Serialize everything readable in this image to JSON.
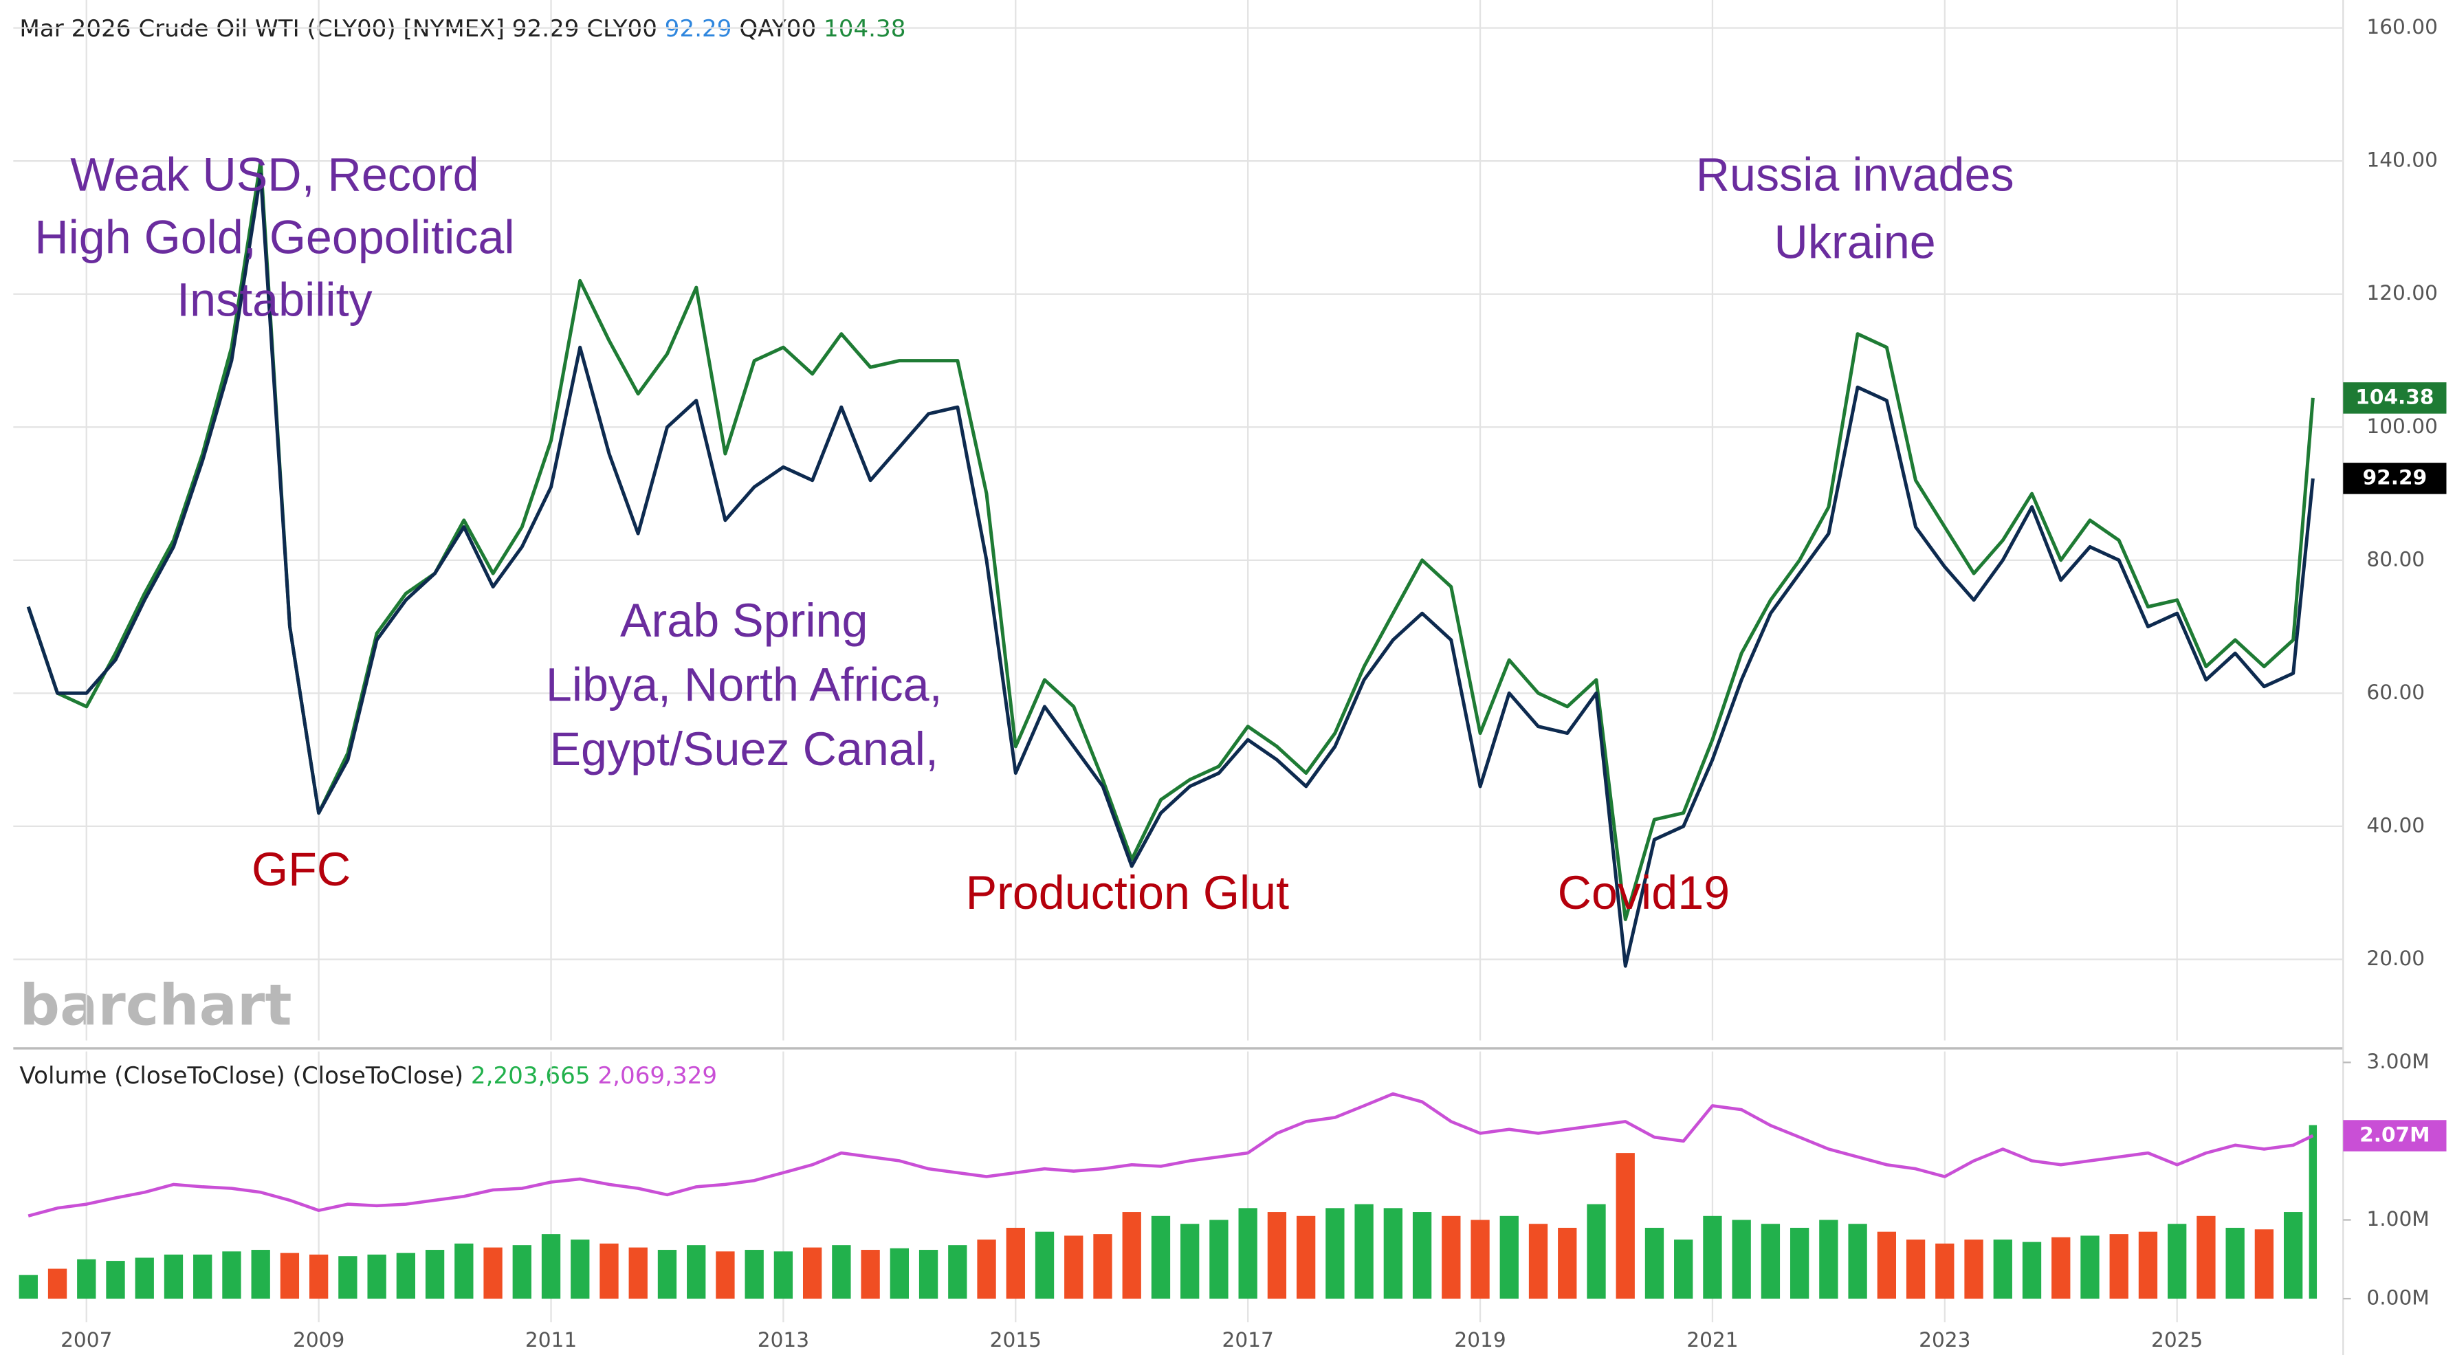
{
  "chart_data": [
    {
      "type": "line",
      "title": "Mar 2026 Crude Oil WTI (CLY00) [NYMEX] 92.29",
      "watermark": "barchart",
      "x": [
        2006.5,
        2006.75,
        2007,
        2007.25,
        2007.5,
        2007.75,
        2008,
        2008.25,
        2008.5,
        2008.75,
        2009,
        2009.25,
        2009.5,
        2009.75,
        2010,
        2010.25,
        2010.5,
        2010.75,
        2011,
        2011.25,
        2011.5,
        2011.75,
        2012,
        2012.25,
        2012.5,
        2012.75,
        2013,
        2013.25,
        2013.5,
        2013.75,
        2014,
        2014.25,
        2014.5,
        2014.75,
        2015,
        2015.25,
        2015.5,
        2015.75,
        2016,
        2016.25,
        2016.5,
        2016.75,
        2017,
        2017.25,
        2017.5,
        2017.75,
        2018,
        2018.25,
        2018.5,
        2018.75,
        2019,
        2019.25,
        2019.5,
        2019.75,
        2020,
        2020.25,
        2020.5,
        2020.75,
        2021,
        2021.25,
        2021.5,
        2021.75,
        2022,
        2022.25,
        2022.5,
        2022.75,
        2023,
        2023.25,
        2023.5,
        2023.75,
        2024,
        2024.25,
        2024.5,
        2024.75,
        2025,
        2025.25,
        2025.5,
        2025.75,
        2026,
        2026.17
      ],
      "series": [
        {
          "name": "CLY00",
          "color": "#0d2a4f",
          "legend_color": "#2e86de",
          "last_label": "92.29",
          "values": [
            73,
            60,
            60,
            65,
            74,
            82,
            95,
            110,
            138,
            70,
            42,
            50,
            68,
            74,
            78,
            85,
            76,
            82,
            91,
            112,
            96,
            84,
            100,
            104,
            86,
            91,
            94,
            92,
            103,
            92,
            97,
            102,
            103,
            80,
            48,
            58,
            52,
            46,
            34,
            42,
            46,
            48,
            53,
            50,
            46,
            52,
            62,
            68,
            72,
            68,
            46,
            60,
            55,
            54,
            60,
            19,
            38,
            40,
            50,
            62,
            72,
            78,
            84,
            106,
            104,
            85,
            79,
            74,
            80,
            88,
            77,
            82,
            80,
            70,
            72,
            62,
            66,
            61,
            63,
            92.29
          ]
        },
        {
          "name": "QAY00",
          "color": "#1e7b34",
          "legend_color": "#1e8a3c",
          "last_label": "104.38",
          "values": [
            73,
            60,
            58,
            66,
            75,
            83,
            96,
            112,
            140,
            70,
            42,
            51,
            69,
            75,
            78,
            86,
            78,
            85,
            98,
            122,
            113,
            105,
            111,
            121,
            96,
            110,
            112,
            108,
            114,
            109,
            110,
            110,
            110,
            90,
            52,
            62,
            58,
            47,
            35,
            44,
            47,
            49,
            55,
            52,
            48,
            54,
            64,
            72,
            80,
            76,
            54,
            65,
            60,
            58,
            62,
            26,
            41,
            42,
            53,
            66,
            74,
            80,
            88,
            114,
            112,
            92,
            85,
            78,
            83,
            90,
            80,
            86,
            83,
            73,
            74,
            64,
            68,
            64,
            68,
            104.38
          ]
        }
      ],
      "xlim": [
        2006.37,
        2026.43
      ],
      "xticks": [
        2007,
        2009,
        2011,
        2013,
        2015,
        2017,
        2019,
        2021,
        2023,
        2025
      ],
      "ylim": [
        7.8,
        164.2
      ],
      "yticks": [
        {
          "value": 20,
          "label": "20.00"
        },
        {
          "value": 40,
          "label": "40.00"
        },
        {
          "value": 60,
          "label": "60.00"
        },
        {
          "value": 80,
          "label": "80.00"
        },
        {
          "value": 100,
          "label": "100.00"
        },
        {
          "value": 120,
          "label": "120.00"
        },
        {
          "value": 140,
          "label": "140.00"
        },
        {
          "value": 160,
          "label": "160.00"
        }
      ],
      "grid": true,
      "annotations": [
        {
          "lines": [
            "Weak USD, Record",
            "High Gold, Geopolitical",
            "Instability"
          ],
          "color": "#6a2c9e"
        },
        {
          "lines": [
            "GFC"
          ],
          "color": "#b5000c"
        },
        {
          "lines": [
            "Arab Spring",
            "Libya, North Africa,",
            "Egypt/Suez Canal,"
          ],
          "color": "#6a2c9e"
        },
        {
          "lines": [
            "Production Glut"
          ],
          "color": "#b5000c"
        },
        {
          "lines": [
            "Covid19"
          ],
          "color": "#b5000c"
        },
        {
          "lines": [
            "Russia invades",
            "Ukraine"
          ],
          "color": "#6a2c9e"
        }
      ]
    },
    {
      "type": "bar",
      "x": [
        2006.5,
        2006.75,
        2007,
        2007.25,
        2007.5,
        2007.75,
        2008,
        2008.25,
        2008.5,
        2008.75,
        2009,
        2009.25,
        2009.5,
        2009.75,
        2010,
        2010.25,
        2010.5,
        2010.75,
        2011,
        2011.25,
        2011.5,
        2011.75,
        2012,
        2012.25,
        2012.5,
        2012.75,
        2013,
        2013.25,
        2013.5,
        2013.75,
        2014,
        2014.25,
        2014.5,
        2014.75,
        2015,
        2015.25,
        2015.5,
        2015.75,
        2016,
        2016.25,
        2016.5,
        2016.75,
        2017,
        2017.25,
        2017.5,
        2017.75,
        2018,
        2018.25,
        2018.5,
        2018.75,
        2019,
        2019.25,
        2019.5,
        2019.75,
        2020,
        2020.25,
        2020.5,
        2020.75,
        2021,
        2021.25,
        2021.5,
        2021.75,
        2022,
        2022.25,
        2022.5,
        2022.75,
        2023,
        2023.25,
        2023.5,
        2023.75,
        2024,
        2024.25,
        2024.5,
        2024.75,
        2025,
        2025.25,
        2025.5,
        2025.75,
        2026,
        2026.17
      ],
      "series": [
        {
          "name": "Volume (CloseToClose)",
          "up_color": "#22b14c",
          "down_color": "#f04e23",
          "legend_color": "#22b14c",
          "last_label": "2,203,665",
          "values": [
            300000,
            380000,
            500000,
            480000,
            520000,
            560000,
            560000,
            600000,
            620000,
            580000,
            560000,
            540000,
            560000,
            580000,
            620000,
            700000,
            650000,
            680000,
            820000,
            750000,
            700000,
            650000,
            620000,
            680000,
            600000,
            620000,
            600000,
            650000,
            680000,
            620000,
            640000,
            620000,
            680000,
            750000,
            900000,
            850000,
            800000,
            820000,
            1100000,
            1050000,
            950000,
            1000000,
            1150000,
            1100000,
            1050000,
            1150000,
            1200000,
            1150000,
            1100000,
            1050000,
            1000000,
            1050000,
            950000,
            900000,
            1200000,
            1850000,
            900000,
            750000,
            1050000,
            1000000,
            950000,
            900000,
            1000000,
            950000,
            850000,
            750000,
            700000,
            750000,
            750000,
            720000,
            780000,
            800000,
            820000,
            850000,
            950000,
            1050000,
            900000,
            880000,
            1100000,
            2203665
          ]
        },
        {
          "name": "(CloseToClose)",
          "type": "line",
          "color": "#c94fd6",
          "legend_color": "#c94fd6",
          "last_label": "2,069,329",
          "badge_label": "2.07M",
          "values": [
            1050000,
            1150000,
            1200000,
            1280000,
            1350000,
            1450000,
            1420000,
            1400000,
            1350000,
            1250000,
            1120000,
            1200000,
            1180000,
            1200000,
            1250000,
            1300000,
            1380000,
            1400000,
            1480000,
            1520000,
            1450000,
            1400000,
            1320000,
            1420000,
            1450000,
            1500000,
            1600000,
            1700000,
            1850000,
            1800000,
            1750000,
            1650000,
            1600000,
            1550000,
            1600000,
            1650000,
            1620000,
            1650000,
            1700000,
            1680000,
            1750000,
            1800000,
            1850000,
            2100000,
            2250000,
            2300000,
            2450000,
            2600000,
            2500000,
            2250000,
            2100000,
            2150000,
            2100000,
            2150000,
            2200000,
            2250000,
            2050000,
            2000000,
            2450000,
            2400000,
            2200000,
            2050000,
            1900000,
            1800000,
            1700000,
            1650000,
            1550000,
            1750000,
            1900000,
            1750000,
            1700000,
            1750000,
            1800000,
            1850000,
            1700000,
            1850000,
            1950000,
            1900000,
            1950000,
            2069329
          ]
        }
      ],
      "xlim": [
        2006.37,
        2026.43
      ],
      "xticks": [
        2007,
        2009,
        2011,
        2013,
        2015,
        2017,
        2019,
        2021,
        2023,
        2025
      ],
      "ylim": [
        0,
        3000000
      ],
      "yticks": [
        {
          "value": 0,
          "label": "0.00M"
        },
        {
          "value": 1000000,
          "label": "1.00M"
        },
        {
          "value": 3000000,
          "label": "3.00M"
        }
      ]
    }
  ]
}
